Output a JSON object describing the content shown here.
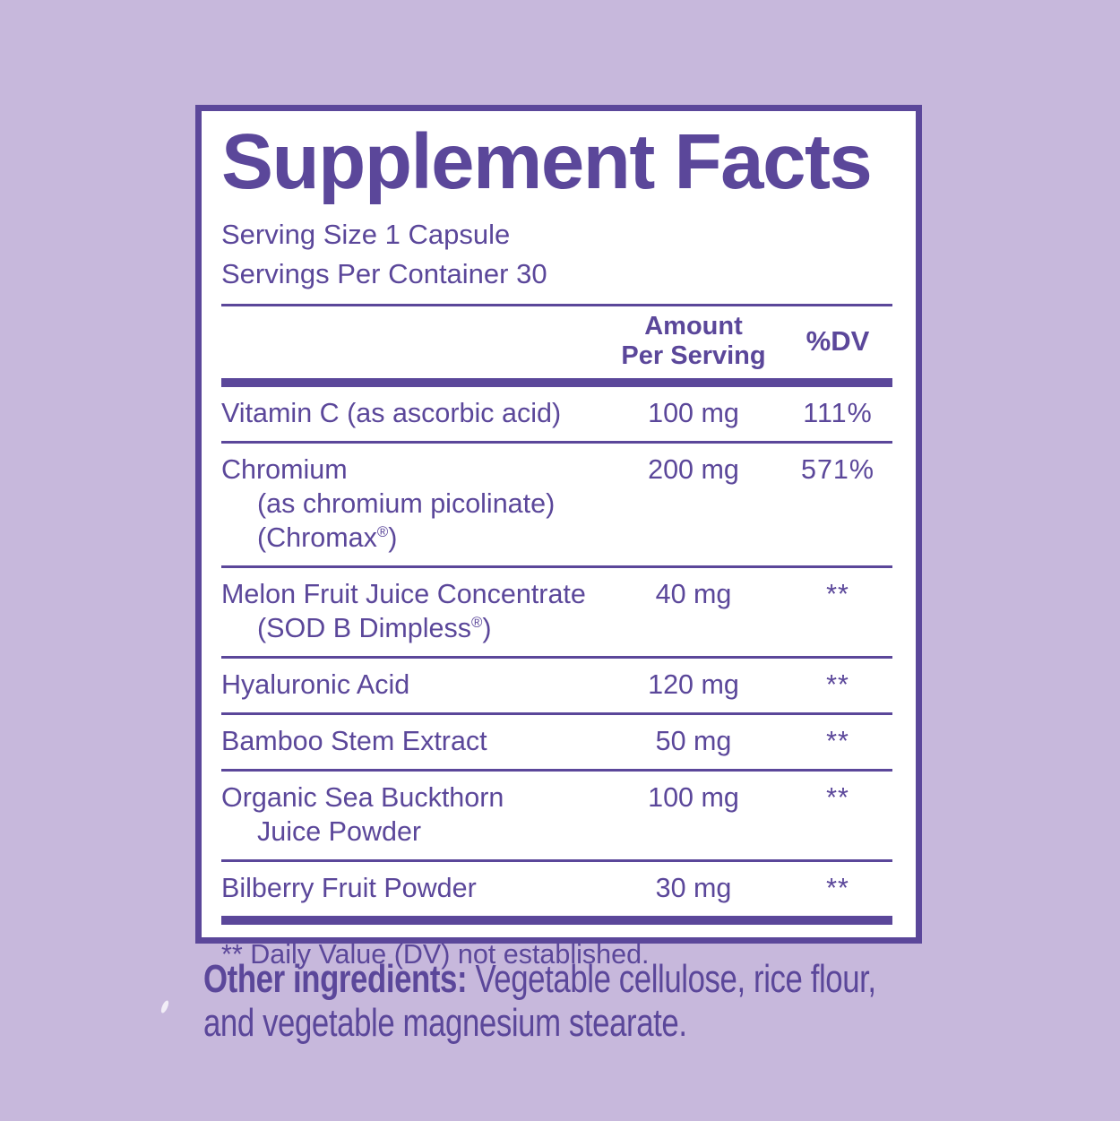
{
  "colors": {
    "background": "#c7b8dc",
    "accent_purple": "#5b479a",
    "panel_background": "#ffffff"
  },
  "panel": {
    "title": "Supplement Facts",
    "serving_size": "Serving Size 1 Capsule",
    "servings_per_container": "Servings Per Container 30",
    "table": {
      "amount_header_lines": [
        "Amount",
        "Per Serving"
      ],
      "dv_header": "%DV",
      "rows": [
        {
          "name_lines": [
            "Vitamin C (as ascorbic acid)"
          ],
          "amount": "100 mg",
          "dv": "111%"
        },
        {
          "name_lines": [
            "Chromium",
            "(as chromium picolinate)",
            "(Chromax®)"
          ],
          "amount": "200 mg",
          "dv": "571%"
        },
        {
          "name_lines": [
            "Melon Fruit Juice Concentrate",
            "(SOD B Dimpless®)"
          ],
          "amount": "40 mg",
          "dv": "**"
        },
        {
          "name_lines": [
            "Hyaluronic Acid"
          ],
          "amount": "120 mg",
          "dv": "**"
        },
        {
          "name_lines": [
            "Bamboo Stem Extract"
          ],
          "amount": "50 mg",
          "dv": "**"
        },
        {
          "name_lines": [
            "Organic Sea Buckthorn",
            "Juice Powder"
          ],
          "amount": "100 mg",
          "dv": "**"
        },
        {
          "name_lines": [
            "Bilberry Fruit Powder"
          ],
          "amount": "30 mg",
          "dv": "**"
        }
      ],
      "footnote": "** Daily Value (DV) not established."
    }
  },
  "other_ingredients": {
    "label": "Other ingredients:",
    "line1_rest": " Vegetable cellulose, rice flour,",
    "line2": "and vegetable magnesium stearate."
  }
}
